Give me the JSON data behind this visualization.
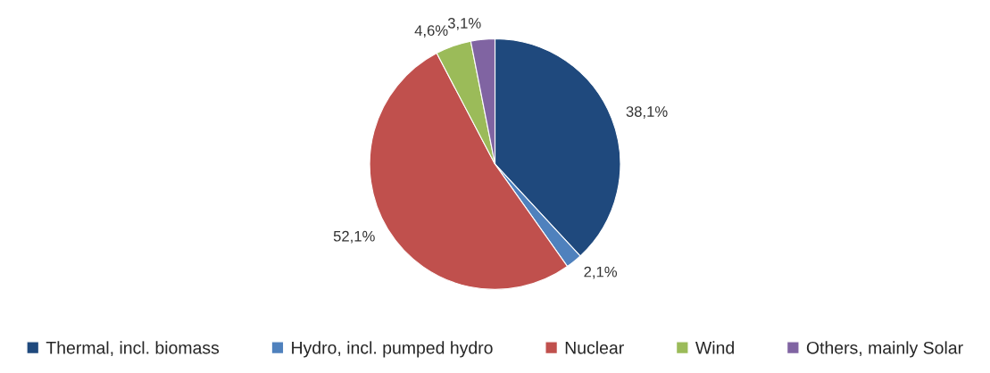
{
  "chart_data": {
    "type": "pie",
    "categories": [
      "Thermal, incl. biomass",
      "Hydro, incl. pumped hydro",
      "Nuclear",
      "Wind",
      "Others, mainly Solar"
    ],
    "values": [
      38.1,
      2.1,
      52.1,
      4.6,
      3.1
    ],
    "value_labels": [
      "38,1%",
      "2,1%",
      "52,1%",
      "4,6%",
      "3,1%"
    ],
    "colors": [
      "#1f497d",
      "#4f81bd",
      "#c0504d",
      "#9bbb59",
      "#8064a2"
    ],
    "legend": "bottom"
  }
}
